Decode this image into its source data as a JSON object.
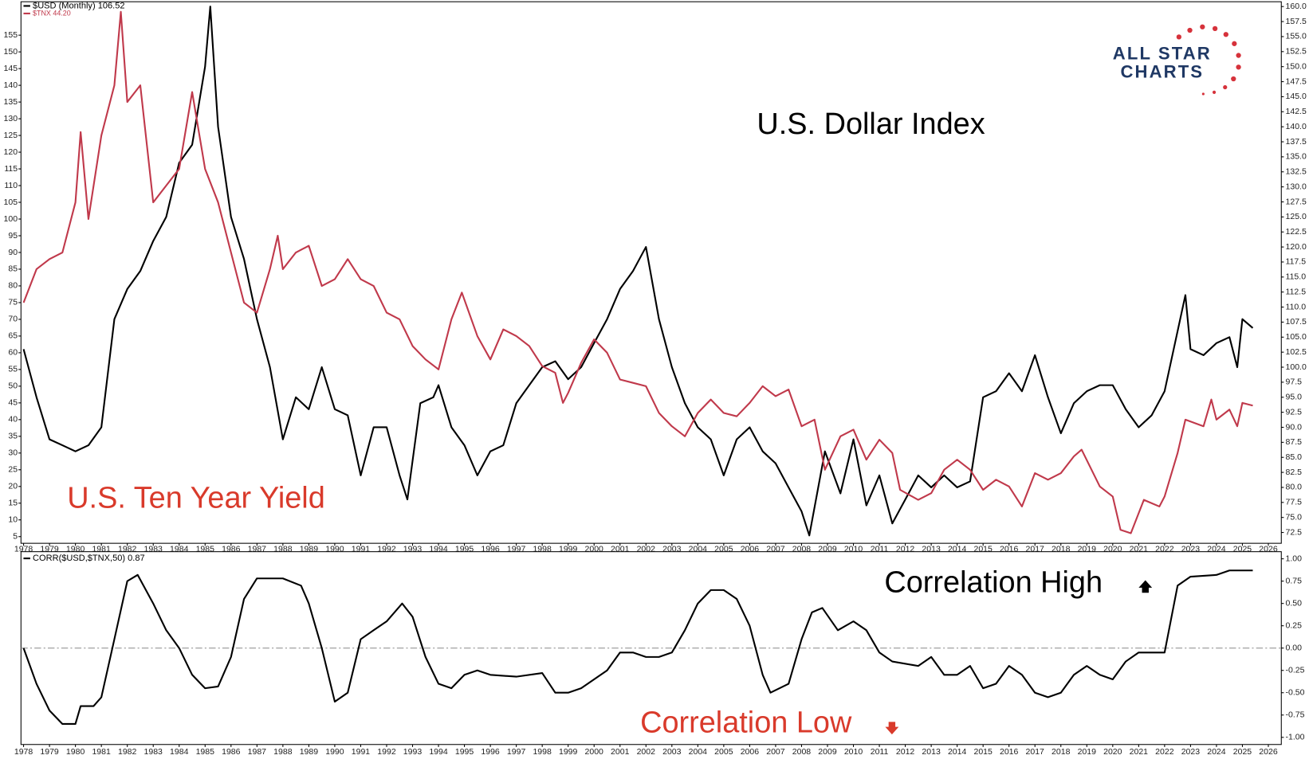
{
  "chart_data": [
    {
      "type": "line",
      "annotations": [
        {
          "text": "U.S. Dollar Index",
          "color": "#000000"
        },
        {
          "text": "U.S. Ten Year Yield",
          "color": "#d93a2b"
        }
      ],
      "xlim": [
        1977.9,
        2026.5
      ],
      "xticks": [
        1978,
        1979,
        1980,
        1981,
        1982,
        1983,
        1984,
        1985,
        1986,
        1987,
        1988,
        1989,
        1990,
        1991,
        1992,
        1993,
        1994,
        1995,
        1996,
        1997,
        1998,
        1999,
        2000,
        2001,
        2002,
        2003,
        2004,
        2005,
        2006,
        2007,
        2008,
        2009,
        2010,
        2011,
        2012,
        2013,
        2014,
        2015,
        2016,
        2017,
        2018,
        2019,
        2020,
        2021,
        2022,
        2023,
        2024,
        2025,
        2026
      ],
      "ylim": [
        3,
        165
      ],
      "yticks": [
        5,
        10,
        15,
        20,
        25,
        30,
        35,
        40,
        45,
        50,
        55,
        60,
        65,
        70,
        75,
        80,
        85,
        90,
        95,
        100,
        105,
        110,
        115,
        120,
        125,
        130,
        135,
        140,
        145,
        150,
        155
      ],
      "y2lim": [
        70.7,
        160.8
      ],
      "y2ticks": [
        72.5,
        {
          "value": 75,
          "label": "75.0"
        },
        77.5,
        {
          "value": 80,
          "label": "80.0"
        },
        82.5,
        {
          "value": 85,
          "label": "85.0"
        },
        87.5,
        {
          "value": 90,
          "label": "90.0"
        },
        92.5,
        {
          "value": 95,
          "label": "95.0"
        },
        97.5,
        {
          "value": 100,
          "label": "100.0"
        },
        102.5,
        {
          "value": 105,
          "label": "105.0"
        },
        107.5,
        {
          "value": 110,
          "label": "110.0"
        },
        112.5,
        {
          "value": 115,
          "label": "115.0"
        },
        117.5,
        {
          "value": 120,
          "label": "120.0"
        },
        122.5,
        {
          "value": 125,
          "label": "125.0"
        },
        127.5,
        {
          "value": 130,
          "label": "130.0"
        },
        132.5,
        {
          "value": 135,
          "label": "135.0"
        },
        137.5,
        {
          "value": 140,
          "label": "140.0"
        },
        142.5,
        {
          "value": 145,
          "label": "145.0"
        },
        147.5,
        {
          "value": 150,
          "label": "150.0"
        },
        152.5,
        {
          "value": 155,
          "label": "155.0"
        },
        157.5,
        {
          "value": 160,
          "label": "160.0"
        }
      ],
      "series": [
        {
          "name": "$USD (Monthly) 106.52",
          "color": "#000000",
          "axis": "y2",
          "x": [
            1978,
            1978.5,
            1979,
            1979.5,
            1980,
            1980.5,
            1981,
            1981.5,
            1982,
            1982.5,
            1983,
            1983.5,
            1984,
            1984.5,
            1985,
            1985.2,
            1985.5,
            1986,
            1986.5,
            1987,
            1987.5,
            1988,
            1988.5,
            1989,
            1989.5,
            1990,
            1990.5,
            1991,
            1991.5,
            1992,
            1992.5,
            1992.8,
            1993.3,
            1993.8,
            1994,
            1994.5,
            1995,
            1995.5,
            1996,
            1996.5,
            1997,
            1997.5,
            1998,
            1998.5,
            1999,
            1999.5,
            2000,
            2000.5,
            2001,
            2001.5,
            2002,
            2002.5,
            2003,
            2003.5,
            2004,
            2004.5,
            2005,
            2005.5,
            2006,
            2006.5,
            2007,
            2007.5,
            2008,
            2008.3,
            2008.9,
            2009.5,
            2010,
            2010.5,
            2011,
            2011.5,
            2012,
            2012.5,
            2013,
            2013.5,
            2014,
            2014.5,
            2015,
            2015.5,
            2016,
            2016.5,
            2017,
            2017.5,
            2018,
            2018.5,
            2019,
            2019.5,
            2020,
            2020.5,
            2021,
            2021.5,
            2022,
            2022.8,
            2023,
            2023.5,
            2024,
            2024.5,
            2024.8,
            2025,
            2025.4
          ],
          "values": [
            103,
            95,
            88,
            87,
            86,
            87,
            90,
            108,
            113,
            116,
            121,
            125,
            134,
            137,
            150,
            160,
            140,
            125,
            118,
            108,
            100,
            88,
            95,
            93,
            100,
            93,
            92,
            82,
            90,
            90,
            82,
            78,
            94,
            95,
            97,
            90,
            87,
            82,
            86,
            87,
            94,
            97,
            100,
            101,
            98,
            100,
            104,
            108,
            113,
            116,
            120,
            108,
            100,
            94,
            90,
            88,
            82,
            88,
            90,
            86,
            84,
            80,
            76,
            72,
            86,
            79,
            88,
            77,
            82,
            74,
            78,
            82,
            80,
            82,
            80,
            81,
            95,
            96,
            99,
            96,
            102,
            95,
            89,
            94,
            96,
            97,
            97,
            93,
            90,
            92,
            96,
            112,
            103,
            102,
            104,
            105,
            100,
            108,
            106.52
          ]
        },
        {
          "name": "$TNX 44.20",
          "color": "#c0394b",
          "x": [
            1978,
            1978.5,
            1979,
            1979.5,
            1980,
            1980.2,
            1980.5,
            1981,
            1981.5,
            1981.75,
            1982,
            1982.5,
            1983,
            1983.5,
            1984,
            1984.5,
            1985,
            1985.5,
            1986,
            1986.5,
            1987,
            1987.5,
            1987.8,
            1988,
            1988.5,
            1989,
            1989.5,
            1990,
            1990.5,
            1991,
            1991.5,
            1992,
            1992.5,
            1993,
            1993.5,
            1994,
            1994.5,
            1994.9,
            1995.5,
            1996,
            1996.5,
            1997,
            1997.5,
            1998,
            1998.5,
            1998.8,
            1999,
            1999.5,
            2000,
            2000.5,
            2001,
            2001.5,
            2002,
            2002.5,
            2003,
            2003.5,
            2004,
            2004.5,
            2005,
            2005.5,
            2006,
            2006.5,
            2007,
            2007.5,
            2008,
            2008.5,
            2008.9,
            2009.5,
            2010,
            2010.5,
            2011,
            2011.5,
            2011.8,
            2012.5,
            2013,
            2013.5,
            2014,
            2014.5,
            2015,
            2015.5,
            2016,
            2016.5,
            2017,
            2017.5,
            2018,
            2018.5,
            2018.8,
            2019.5,
            2020,
            2020.3,
            2020.7,
            2021.2,
            2021.8,
            2022,
            2022.5,
            2022.8,
            2023.5,
            2023.8,
            2024,
            2024.5,
            2024.8,
            2025,
            2025.4
          ],
          "values": [
            75,
            85,
            88,
            90,
            105,
            126,
            100,
            125,
            140,
            162,
            135,
            140,
            105,
            110,
            115,
            138,
            115,
            105,
            90,
            75,
            72,
            85,
            95,
            85,
            90,
            92,
            80,
            82,
            88,
            82,
            80,
            72,
            70,
            62,
            58,
            55,
            70,
            78,
            65,
            58,
            67,
            65,
            62,
            56,
            54,
            45,
            48,
            57,
            64,
            60,
            52,
            51,
            50,
            42,
            38,
            35,
            42,
            46,
            42,
            41,
            45,
            50,
            47,
            49,
            38,
            40,
            25,
            35,
            37,
            28,
            34,
            30,
            19,
            16,
            18,
            25,
            28,
            25,
            19,
            22,
            20,
            14,
            24,
            22,
            24,
            29,
            31,
            20,
            17,
            7,
            6,
            16,
            14,
            17,
            30,
            40,
            38,
            46,
            40,
            43,
            38,
            45,
            44.2
          ]
        }
      ]
    },
    {
      "type": "line",
      "annotations": [
        {
          "text": "Correlation High",
          "color": "#000000"
        },
        {
          "text": "Correlation Low",
          "color": "#d93a2b"
        }
      ],
      "xlim": [
        1977.9,
        2026.5
      ],
      "xticks": [
        1978,
        1979,
        1980,
        1981,
        1982,
        1983,
        1984,
        1985,
        1986,
        1987,
        1988,
        1989,
        1990,
        1991,
        1992,
        1993,
        1994,
        1995,
        1996,
        1997,
        1998,
        1999,
        2000,
        2001,
        2002,
        2003,
        2004,
        2005,
        2006,
        2007,
        2008,
        2009,
        2010,
        2011,
        2012,
        2013,
        2014,
        2015,
        2016,
        2017,
        2018,
        2019,
        2020,
        2021,
        2022,
        2023,
        2024,
        2025,
        2026
      ],
      "ylim": [
        -1.08,
        1.08
      ],
      "y2ticks": [
        {
          "value": -1,
          "label": "-1.00"
        },
        -0.75,
        {
          "value": -0.5,
          "label": "-0.50"
        },
        -0.25,
        {
          "value": 0,
          "label": "0.00"
        },
        0.25,
        {
          "value": 0.5,
          "label": "0.50"
        },
        0.75,
        {
          "value": 1,
          "label": "1.00"
        }
      ],
      "reference_line": 0,
      "series": [
        {
          "name": "CORR($USD,$TNX,50) 0.87",
          "color": "#000000",
          "x": [
            1978,
            1978.5,
            1979,
            1979.5,
            1980,
            1980.2,
            1980.7,
            1981,
            1981.5,
            1982,
            1982.4,
            1983,
            1983.5,
            1984,
            1984.5,
            1985,
            1985.5,
            1986,
            1986.5,
            1987,
            1988,
            1988.7,
            1989,
            1989.5,
            1990,
            1990.5,
            1991,
            1991.5,
            1992,
            1992.6,
            1993,
            1993.5,
            1994,
            1994.5,
            1995,
            1995.5,
            1996,
            1997,
            1998,
            1998.5,
            1999,
            1999.5,
            2000.5,
            2001,
            2001.5,
            2002,
            2002.5,
            2003,
            2003.5,
            2004,
            2004.5,
            2005,
            2005.5,
            2006,
            2006.5,
            2006.8,
            2007.5,
            2008,
            2008.4,
            2008.8,
            2009.4,
            2010,
            2010.5,
            2011,
            2011.5,
            2012.5,
            2013,
            2013.5,
            2014,
            2014.5,
            2015,
            2015.5,
            2016,
            2016.5,
            2017,
            2017.5,
            2018,
            2018.5,
            2019,
            2019.5,
            2020,
            2020.5,
            2021,
            2021.5,
            2022,
            2022.5,
            2023,
            2024,
            2024.5,
            2025.4
          ],
          "values": [
            0,
            -0.4,
            -0.7,
            -0.85,
            -0.85,
            -0.65,
            -0.65,
            -0.55,
            0.1,
            0.75,
            0.82,
            0.5,
            0.2,
            0,
            -0.3,
            -0.45,
            -0.43,
            -0.1,
            0.55,
            0.78,
            0.78,
            0.7,
            0.5,
            0,
            -0.6,
            -0.5,
            0.1,
            0.2,
            0.3,
            0.5,
            0.35,
            -0.1,
            -0.4,
            -0.45,
            -0.3,
            -0.25,
            -0.3,
            -0.32,
            -0.28,
            -0.5,
            -0.5,
            -0.45,
            -0.25,
            -0.05,
            -0.05,
            -0.1,
            -0.1,
            -0.05,
            0.2,
            0.5,
            0.65,
            0.65,
            0.55,
            0.25,
            -0.3,
            -0.5,
            -0.4,
            0.1,
            0.4,
            0.45,
            0.2,
            0.3,
            0.2,
            -0.05,
            -0.15,
            -0.2,
            -0.1,
            -0.3,
            -0.3,
            -0.2,
            -0.45,
            -0.4,
            -0.2,
            -0.3,
            -0.5,
            -0.55,
            -0.5,
            -0.3,
            -0.2,
            -0.3,
            -0.35,
            -0.15,
            -0.05,
            -0.05,
            -0.05,
            0.7,
            0.8,
            0.82,
            0.87,
            0.87
          ]
        }
      ]
    }
  ],
  "logo": {
    "line1": "ALL STAR",
    "line2": "CHARTS"
  }
}
